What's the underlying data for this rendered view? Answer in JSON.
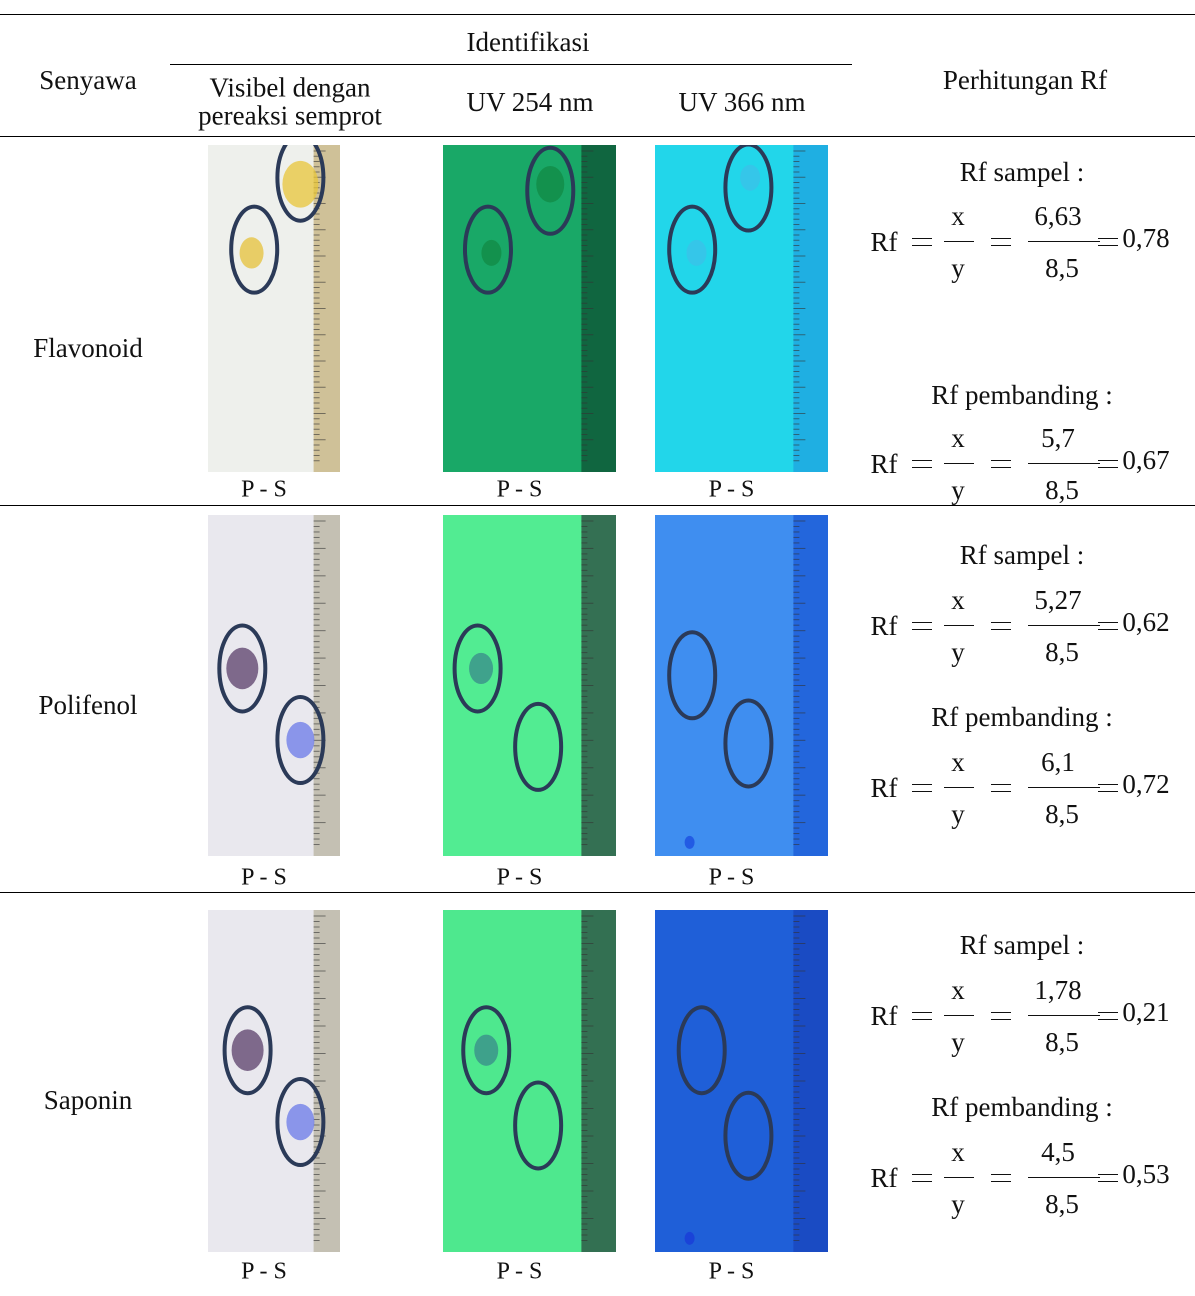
{
  "header": {
    "compound": "Senyawa",
    "identification": "Identifikasi",
    "visible": "Visibel dengan pereaksi semprot",
    "uv254": "UV 254 nm",
    "uv366": "UV 366 nm",
    "rf": "Perhitungan Rf"
  },
  "rows": [
    {
      "compound": "Flavonoid",
      "plate_labels": [
        "P - S",
        "P - S",
        "P - S"
      ],
      "sample": {
        "label": "Rf sampel :",
        "lhs": "Rf",
        "x": "x",
        "y": "y",
        "numerator": "6,63",
        "denominator": "8,5",
        "result": "0,78"
      },
      "reference": {
        "label": "Rf pembanding :",
        "lhs": "Rf",
        "x": "x",
        "y": "y",
        "numerator": "5,7",
        "denominator": "8,5",
        "result": "0,67"
      }
    },
    {
      "compound": "Polifenol",
      "plate_labels": [
        "P - S",
        "P - S",
        "P - S"
      ],
      "sample": {
        "label": "Rf sampel :",
        "lhs": "Rf",
        "x": "x",
        "y": "y",
        "numerator": "5,27",
        "denominator": "8,5",
        "result": "0,62"
      },
      "reference": {
        "label": "Rf pembanding :",
        "lhs": "Rf",
        "x": "x",
        "y": "y",
        "numerator": "6,1",
        "denominator": "8,5",
        "result": "0,72"
      }
    },
    {
      "compound": "Saponin",
      "plate_labels": [
        "P - S",
        "P - S",
        "P - S"
      ],
      "sample": {
        "label": "Rf sampel :",
        "lhs": "Rf",
        "x": "x",
        "y": "y",
        "numerator": "1,78",
        "denominator": "8,5",
        "result": "0,21"
      },
      "reference": {
        "label": "Rf pembanding :",
        "lhs": "Rf",
        "x": "x",
        "y": "y",
        "numerator": "4,5",
        "denominator": "8,5",
        "result": "0,53"
      }
    }
  ]
}
